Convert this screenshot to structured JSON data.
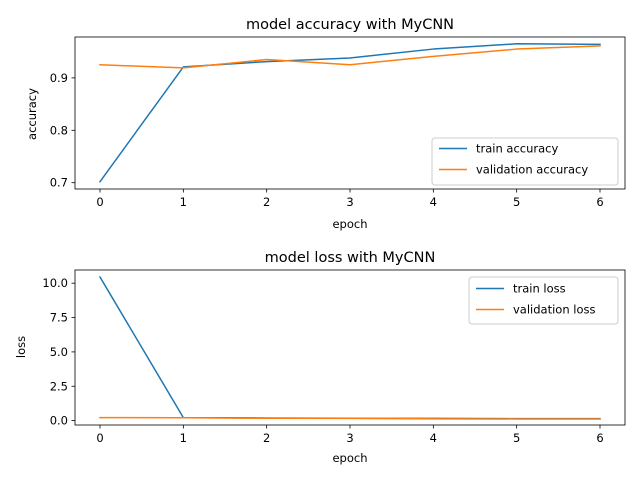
{
  "chart_data": [
    {
      "type": "line",
      "title": "model accuracy with MyCNN",
      "xlabel": "epoch",
      "ylabel": "accuracy",
      "x": [
        0,
        1,
        2,
        3,
        4,
        5,
        6
      ],
      "xlim": [
        -0.3,
        6.3
      ],
      "ylim": [
        0.688,
        0.978
      ],
      "xticks": [
        "0",
        "1",
        "2",
        "3",
        "4",
        "5",
        "6"
      ],
      "yticks": [
        0.7,
        0.8,
        0.9
      ],
      "ytick_labels": [
        "0.7",
        "0.8",
        "0.9"
      ],
      "legend_placement": "lower-right",
      "grid": false,
      "series": [
        {
          "name": "train accuracy",
          "color": "#1f77b4",
          "values": [
            0.702,
            0.921,
            0.931,
            0.938,
            0.955,
            0.965,
            0.964
          ]
        },
        {
          "name": "validation accuracy",
          "color": "#ff7f0e",
          "values": [
            0.925,
            0.919,
            0.935,
            0.925,
            0.941,
            0.955,
            0.961
          ]
        }
      ]
    },
    {
      "type": "line",
      "title": "model loss with MyCNN",
      "xlabel": "epoch",
      "ylabel": "loss",
      "x": [
        0,
        1,
        2,
        3,
        4,
        5,
        6
      ],
      "xlim": [
        -0.3,
        6.3
      ],
      "ylim": [
        -0.32,
        10.96
      ],
      "xticks": [
        "0",
        "1",
        "2",
        "3",
        "4",
        "5",
        "6"
      ],
      "yticks": [
        0.0,
        2.5,
        5.0,
        7.5,
        10.0
      ],
      "ytick_labels": [
        "0.0",
        "2.5",
        "5.0",
        "7.5",
        "10.0"
      ],
      "legend_placement": "upper-right",
      "grid": false,
      "series": [
        {
          "name": "train loss",
          "color": "#1f77b4",
          "values": [
            10.45,
            0.22,
            0.19,
            0.17,
            0.16,
            0.14,
            0.14
          ]
        },
        {
          "name": "validation loss",
          "color": "#ff7f0e",
          "values": [
            0.22,
            0.21,
            0.17,
            0.16,
            0.13,
            0.12,
            0.12
          ]
        }
      ]
    }
  ]
}
